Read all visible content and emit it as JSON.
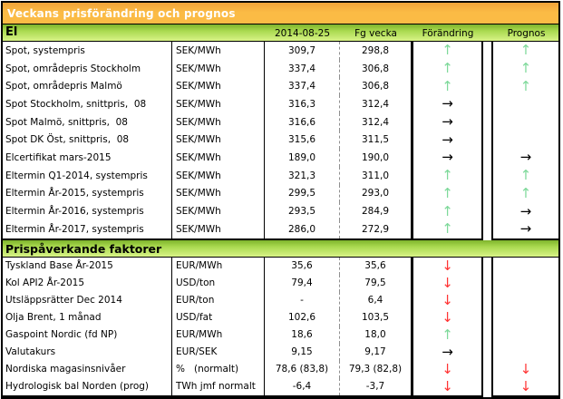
{
  "title": "Veckans prisförändring och prognos",
  "columns": {
    "current": "2014-08-25",
    "previous": "Fg vecka",
    "change": "Förändring",
    "forecast": "Prognos"
  },
  "sections": [
    {
      "header": "El",
      "rows": [
        {
          "label": "Spot, systempris",
          "unit": "SEK/MWh",
          "current": "309,7",
          "previous": "298,8",
          "change": "up",
          "forecast": "up"
        },
        {
          "label": "Spot, områdepris Stockholm",
          "unit": "SEK/MWh",
          "current": "337,4",
          "previous": "306,8",
          "change": "up",
          "forecast": "up"
        },
        {
          "label": "Spot, områdepris Malmö",
          "unit": "SEK/MWh",
          "current": "337,4",
          "previous": "306,8",
          "change": "up",
          "forecast": "up"
        },
        {
          "label": "Spot Stockholm, snittpris,  08",
          "unit": "SEK/MWh",
          "current": "316,3",
          "previous": "312,4",
          "change": "right",
          "forecast": "none"
        },
        {
          "label": "Spot Malmö, snittpris,  08",
          "unit": "SEK/MWh",
          "current": "316,6",
          "previous": "312,4",
          "change": "right",
          "forecast": "none"
        },
        {
          "label": "Spot DK Öst, snittpris,  08",
          "unit": "SEK/MWh",
          "current": "315,6",
          "previous": "311,5",
          "change": "right",
          "forecast": "none"
        },
        {
          "label": "Elcertifikat mars-2015",
          "unit": "SEK/MWh",
          "current": "189,0",
          "previous": "190,0",
          "change": "right",
          "forecast": "right"
        },
        {
          "label": "Eltermin Q1-2014, systempris",
          "unit": "SEK/MWh",
          "current": "321,3",
          "previous": "311,0",
          "change": "up",
          "forecast": "up"
        },
        {
          "label": "Eltermin År-2015, systempris",
          "unit": "SEK/MWh",
          "current": "299,5",
          "previous": "293,0",
          "change": "up",
          "forecast": "up"
        },
        {
          "label": "Eltermin År-2016, systempris",
          "unit": "SEK/MWh",
          "current": "293,5",
          "previous": "284,9",
          "change": "up",
          "forecast": "right"
        },
        {
          "label": "Eltermin År-2017, systempris",
          "unit": "SEK/MWh",
          "current": "286,0",
          "previous": "272,9",
          "change": "up",
          "forecast": "right"
        }
      ]
    },
    {
      "header": "Prispåverkande faktorer",
      "rows": [
        {
          "label": "Tyskland Base År-2015",
          "unit": "EUR/MWh",
          "current": "35,6",
          "previous": "35,6",
          "change": "down",
          "forecast": "none"
        },
        {
          "label": "Kol API2 År-2015",
          "unit": "USD/ton",
          "current": "79,4",
          "previous": "79,5",
          "change": "down",
          "forecast": "none"
        },
        {
          "label": "Utsläppsrätter Dec 2014",
          "unit": "EUR/ton",
          "current": "-",
          "previous": "6,4",
          "change": "down",
          "forecast": "none"
        },
        {
          "label": "Olja Brent, 1 månad",
          "unit": "USD/fat",
          "current": "102,6",
          "previous": "103,5",
          "change": "down",
          "forecast": "none"
        },
        {
          "label": "Gaspoint Nordic (fd NP)",
          "unit": "EUR/MWh",
          "current": "18,6",
          "previous": "18,0",
          "change": "up",
          "forecast": "none"
        },
        {
          "label": "Valutakurs",
          "unit": "EUR/SEK",
          "current": "9,15",
          "previous": "9,17",
          "change": "right",
          "forecast": "none"
        },
        {
          "label": "Nordiska magasinsnivåer",
          "unit": "%   (normalt)",
          "current": "78,6 (83,8)",
          "previous": "79,3 (82,8)",
          "change": "down",
          "forecast": "down"
        },
        {
          "label": "Hydrologisk bal Norden (prog)",
          "unit": "TWh jmf normalt",
          "current": "-6,4",
          "previous": "-3,7",
          "change": "down",
          "forecast": "down"
        }
      ]
    }
  ],
  "arrows": {
    "glyphs": {
      "up": "↑",
      "down": "↓",
      "right": "→",
      "none": ""
    },
    "colors": {
      "up": "#7ED99A",
      "down": "#FF3434",
      "right": "#000000",
      "none": "#000000"
    }
  },
  "colors": {
    "title_bar": "#FBBB45",
    "title_bar_dark": "#F0A339",
    "section_bar_top": "#7EB32B",
    "section_bar_mid": "#AADA50",
    "section_bar_bottom": "#D8F386",
    "border": "#000000"
  }
}
